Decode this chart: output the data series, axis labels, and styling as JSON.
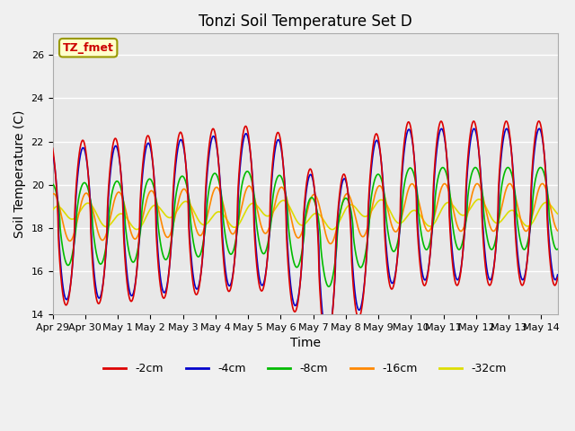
{
  "title": "Tonzi Soil Temperature Set D",
  "xlabel": "Time",
  "ylabel": "Soil Temperature (C)",
  "legend_label": "TZ_fmet",
  "ylim": [
    14,
    27
  ],
  "yticks": [
    14,
    16,
    18,
    20,
    22,
    24,
    26
  ],
  "series": {
    "-2cm": {
      "color": "#dd0000",
      "lw": 1.2
    },
    "-4cm": {
      "color": "#0000cc",
      "lw": 1.2
    },
    "-8cm": {
      "color": "#00bb00",
      "lw": 1.2
    },
    "-16cm": {
      "color": "#ff8800",
      "lw": 1.2
    },
    "-32cm": {
      "color": "#dddd00",
      "lw": 1.2
    }
  },
  "num_days": 15.5,
  "points_per_day": 288,
  "bg_color": "#e8e8e8",
  "grid_color": "#ffffff",
  "tick_labels": [
    "Apr 29",
    "Apr 30",
    "May 1",
    "May 2",
    "May 3",
    "May 4",
    "May 5",
    "May 6",
    "May 7",
    "May 8",
    "May 9",
    "May 10",
    "May 11",
    "May 12",
    "May 13",
    "May 14"
  ]
}
